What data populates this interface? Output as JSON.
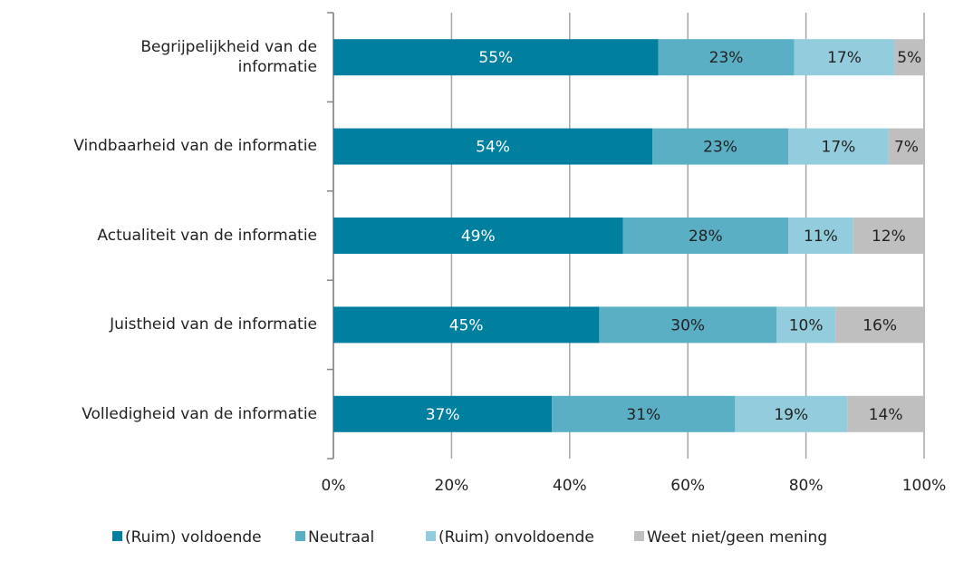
{
  "chart_data": {
    "type": "stacked-bar-horizontal",
    "categories": [
      "Begrijpelijkheid van de\ninformatie",
      "Vindbaarheid van de informatie",
      "Actualiteit van de informatie",
      "Juistheid van de informatie",
      "Volledigheid van de informatie"
    ],
    "series": [
      {
        "name": "(Ruim) voldoende",
        "color": "#007f9f",
        "values": [
          55,
          54,
          49,
          45,
          37
        ],
        "value_labels": [
          "55%",
          "54%",
          "49%",
          "45%",
          "37%"
        ]
      },
      {
        "name": "Neutraal",
        "color": "#5aafc4",
        "values": [
          23,
          23,
          28,
          30,
          31
        ],
        "value_labels": [
          "23%",
          "23%",
          "28%",
          "30%",
          "31%"
        ]
      },
      {
        "name": "(Ruim) onvoldoende",
        "color": "#93cddd",
        "values": [
          17,
          17,
          11,
          10,
          19
        ],
        "value_labels": [
          "17%",
          "17%",
          "11%",
          "10%",
          "19%"
        ]
      },
      {
        "name": "Weet niet/geen mening",
        "color": "#bfbfbf",
        "values": [
          5,
          7,
          12,
          16,
          14
        ],
        "value_labels": [
          "5%",
          "7%",
          "12%",
          "16%",
          "14%"
        ]
      }
    ],
    "xlim": [
      0,
      100
    ],
    "xticks": [
      {
        "value": 0,
        "label": "0%"
      },
      {
        "value": 20,
        "label": "20%"
      },
      {
        "value": 40,
        "label": "40%"
      },
      {
        "value": 60,
        "label": "60%"
      },
      {
        "value": 80,
        "label": "80%"
      },
      {
        "value": 100,
        "label": "100%"
      }
    ],
    "grid": true,
    "legend": "bottom"
  }
}
